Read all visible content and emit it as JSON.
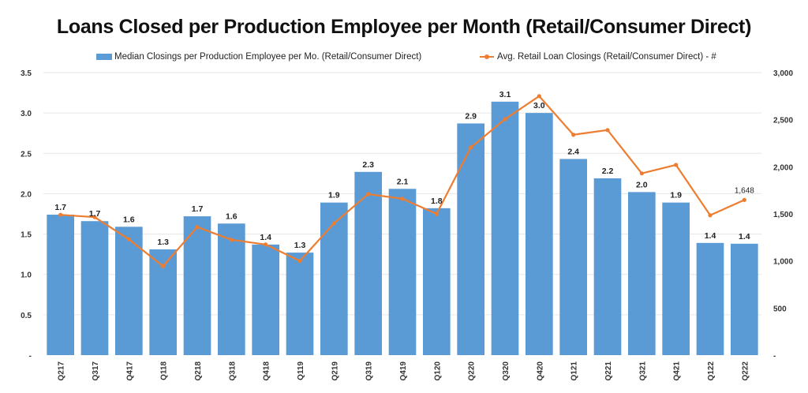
{
  "chart_data": {
    "type": "bar",
    "title": "Loans Closed per Production Employee per Month (Retail/Consumer Direct)",
    "xlabel": "",
    "ylabel": "",
    "y2label": "",
    "categories": [
      "Q217",
      "Q317",
      "Q417",
      "Q118",
      "Q218",
      "Q318",
      "Q418",
      "Q119",
      "Q219",
      "Q319",
      "Q419",
      "Q120",
      "Q220",
      "Q320",
      "Q420",
      "Q121",
      "Q221",
      "Q321",
      "Q421",
      "Q122",
      "Q222"
    ],
    "series": [
      {
        "name": "Median Closings per Production Employee per Mo. (Retail/Consumer Direct)",
        "type": "bar",
        "axis": "left",
        "color": "#5b9bd5",
        "values": [
          1.74,
          1.66,
          1.59,
          1.31,
          1.72,
          1.63,
          1.37,
          1.27,
          1.89,
          2.27,
          2.06,
          1.82,
          2.87,
          3.14,
          3.0,
          2.43,
          2.19,
          2.02,
          1.89,
          1.39,
          1.38
        ],
        "labels": [
          "1.7",
          "1.7",
          "1.6",
          "1.3",
          "1.7",
          "1.6",
          "1.4",
          "1.3",
          "1.9",
          "2.3",
          "2.1",
          "1.8",
          "2.9",
          "3.1",
          "3.0",
          "2.4",
          "2.2",
          "2.0",
          "1.9",
          "1.4",
          "1.4"
        ]
      },
      {
        "name": "Avg. Retail Loan Closings (Retail/Consumer Direct) - #",
        "type": "line",
        "axis": "right",
        "color": "#ed7d31",
        "values": [
          1490,
          1465,
          1230,
          945,
          1360,
          1225,
          1175,
          1000,
          1400,
          1710,
          1660,
          1500,
          2205,
          2505,
          2750,
          2340,
          2390,
          1930,
          2020,
          1485,
          1648
        ],
        "last_label": "1,648"
      }
    ],
    "ylim": [
      0,
      3.5
    ],
    "y_ticks": [
      0,
      0.5,
      1.0,
      1.5,
      2.0,
      2.5,
      3.0,
      3.5
    ],
    "y_tick_labels": [
      "-",
      "0.5",
      "1.0",
      "1.5",
      "2.0",
      "2.5",
      "3.0",
      "3.5"
    ],
    "y2lim": [
      0,
      3000
    ],
    "y2_ticks": [
      0,
      500,
      1000,
      1500,
      2000,
      2500,
      3000
    ],
    "y2_tick_labels": [
      "-",
      "500",
      "1,000",
      "1,500",
      "2,000",
      "2,500",
      "3,000"
    ],
    "grid": true,
    "legend_position": "top-center"
  }
}
